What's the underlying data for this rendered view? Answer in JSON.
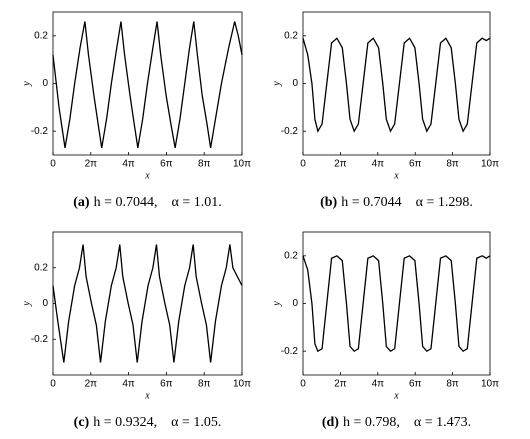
{
  "chart_data": [
    {
      "type": "line",
      "label": "(a)",
      "caption": "h = 0.7044,    α = 1.01.",
      "xlabel": "x",
      "ylabel": "y",
      "color": "#000000",
      "xlim": [
        0,
        31.416
      ],
      "ylim": [
        -0.3,
        0.3
      ],
      "xticks": [
        0,
        {
          "value": 6.283,
          "label": "2π"
        },
        {
          "value": 12.566,
          "label": "4π"
        },
        {
          "value": 18.85,
          "label": "6π"
        },
        {
          "value": 25.133,
          "label": "8π"
        },
        {
          "value": 31.416,
          "label": "10π"
        }
      ],
      "yticks": [
        -0.2,
        0,
        0.2
      ],
      "x": [
        0,
        1.0,
        2.0,
        2.8,
        3.6,
        4.5,
        5.3,
        5.9,
        6.8,
        7.5,
        8.1,
        8.9,
        9.7,
        10.6,
        11.3,
        11.9,
        12.8,
        13.5,
        14.1,
        14.9,
        15.7,
        16.6,
        17.3,
        17.9,
        18.8,
        19.6,
        20.3,
        21.1,
        21.9,
        22.7,
        23.4,
        24.0,
        24.8,
        25.6,
        26.2,
        27.0,
        28.0,
        29.2,
        30.2,
        30.8,
        31.416
      ],
      "values": [
        0.12,
        -0.1,
        -0.27,
        -0.15,
        0.0,
        0.15,
        0.26,
        0.12,
        -0.05,
        -0.17,
        -0.27,
        -0.15,
        0.0,
        0.15,
        0.26,
        0.12,
        -0.05,
        -0.17,
        -0.27,
        -0.15,
        0.0,
        0.15,
        0.26,
        0.12,
        -0.05,
        -0.17,
        -0.27,
        -0.15,
        0.0,
        0.15,
        0.26,
        0.12,
        -0.05,
        -0.17,
        -0.27,
        -0.15,
        0.0,
        0.15,
        0.26,
        0.2,
        0.12
      ]
    },
    {
      "type": "line",
      "label": "(b)",
      "caption": "h = 0.7044    α = 1.298.",
      "xlabel": "x",
      "ylabel": "y",
      "color": "#000000",
      "xlim": [
        0,
        31.416
      ],
      "ylim": [
        -0.3,
        0.3
      ],
      "xticks": [
        0,
        {
          "value": 6.283,
          "label": "2π"
        },
        {
          "value": 12.566,
          "label": "4π"
        },
        {
          "value": 18.85,
          "label": "6π"
        },
        {
          "value": 25.133,
          "label": "8π"
        },
        {
          "value": 31.416,
          "label": "10π"
        }
      ],
      "yticks": [
        -0.2,
        0,
        0.2
      ],
      "x": [
        0,
        0.8,
        1.5,
        2.0,
        2.5,
        3.2,
        4.0,
        4.8,
        5.7,
        6.6,
        7.3,
        7.9,
        8.6,
        9.3,
        10.1,
        10.9,
        11.8,
        12.7,
        13.4,
        14.0,
        14.7,
        15.4,
        16.2,
        17.0,
        17.9,
        18.8,
        19.5,
        20.1,
        20.8,
        21.5,
        22.3,
        23.1,
        24.0,
        24.9,
        25.6,
        26.2,
        26.9,
        27.6,
        28.4,
        29.2,
        30.1,
        30.8,
        31.416
      ],
      "values": [
        0.19,
        0.12,
        0.0,
        -0.15,
        -0.2,
        -0.17,
        0.0,
        0.17,
        0.19,
        0.15,
        0.0,
        -0.15,
        -0.2,
        -0.17,
        0.0,
        0.17,
        0.19,
        0.15,
        0.0,
        -0.15,
        -0.2,
        -0.17,
        0.0,
        0.17,
        0.19,
        0.15,
        0.0,
        -0.15,
        -0.2,
        -0.17,
        0.0,
        0.17,
        0.19,
        0.15,
        0.0,
        -0.15,
        -0.2,
        -0.17,
        0.0,
        0.17,
        0.19,
        0.18,
        0.19
      ]
    },
    {
      "type": "line",
      "label": "(c)",
      "caption": "h = 0.9324,    α = 1.05.",
      "xlabel": "x",
      "ylabel": "y",
      "color": "#000000",
      "xlim": [
        0,
        31.416
      ],
      "ylim": [
        -0.4,
        0.4
      ],
      "xticks": [
        0,
        {
          "value": 6.283,
          "label": "2π"
        },
        {
          "value": 12.566,
          "label": "4π"
        },
        {
          "value": 18.85,
          "label": "6π"
        },
        {
          "value": 25.133,
          "label": "8π"
        },
        {
          "value": 31.416,
          "label": "10π"
        }
      ],
      "yticks": [
        -0.2,
        0,
        0.2
      ],
      "x": [
        0,
        0.8,
        1.8,
        2.6,
        3.6,
        4.4,
        5.0,
        5.5,
        6.4,
        7.2,
        7.9,
        8.7,
        9.7,
        10.5,
        11.1,
        11.6,
        12.5,
        13.3,
        14.0,
        14.8,
        15.8,
        16.6,
        17.2,
        17.7,
        18.6,
        19.4,
        20.1,
        20.9,
        21.9,
        22.7,
        23.3,
        23.8,
        24.7,
        25.5,
        26.2,
        27.0,
        28.0,
        28.8,
        29.4,
        29.9,
        31.416
      ],
      "values": [
        0.1,
        -0.1,
        -0.33,
        -0.1,
        0.1,
        0.2,
        0.33,
        0.15,
        0.0,
        -0.12,
        -0.33,
        -0.1,
        0.1,
        0.2,
        0.33,
        0.15,
        0.0,
        -0.12,
        -0.33,
        -0.1,
        0.1,
        0.2,
        0.33,
        0.15,
        0.0,
        -0.12,
        -0.33,
        -0.1,
        0.1,
        0.2,
        0.33,
        0.15,
        0.0,
        -0.12,
        -0.33,
        -0.1,
        0.1,
        0.2,
        0.33,
        0.2,
        0.1
      ]
    },
    {
      "type": "line",
      "label": "(d)",
      "caption": "h = 0.798,    α = 1.473.",
      "xlabel": "x",
      "ylabel": "y",
      "color": "#000000",
      "xlim": [
        0,
        31.416
      ],
      "ylim": [
        -0.3,
        0.3
      ],
      "xticks": [
        0,
        {
          "value": 6.283,
          "label": "2π"
        },
        {
          "value": 12.566,
          "label": "4π"
        },
        {
          "value": 18.85,
          "label": "6π"
        },
        {
          "value": 25.133,
          "label": "8π"
        },
        {
          "value": 31.416,
          "label": "10π"
        }
      ],
      "yticks": [
        -0.2,
        0,
        0.2
      ],
      "x": [
        0,
        0.8,
        1.5,
        2.0,
        2.5,
        3.2,
        4.0,
        4.8,
        5.7,
        6.6,
        7.3,
        7.9,
        8.6,
        9.3,
        10.1,
        10.9,
        11.8,
        12.7,
        13.4,
        14.0,
        14.7,
        15.4,
        16.2,
        17.0,
        17.9,
        18.8,
        19.5,
        20.1,
        20.8,
        21.5,
        22.3,
        23.1,
        24.0,
        24.9,
        25.6,
        26.2,
        26.9,
        27.6,
        28.4,
        29.2,
        30.1,
        30.8,
        31.416
      ],
      "values": [
        0.2,
        0.14,
        0.0,
        -0.17,
        -0.2,
        -0.19,
        0.0,
        0.19,
        0.2,
        0.18,
        0.0,
        -0.18,
        -0.2,
        -0.19,
        0.0,
        0.19,
        0.2,
        0.18,
        0.0,
        -0.18,
        -0.2,
        -0.19,
        0.0,
        0.19,
        0.2,
        0.18,
        0.0,
        -0.18,
        -0.2,
        -0.19,
        0.0,
        0.19,
        0.2,
        0.18,
        0.0,
        -0.18,
        -0.2,
        -0.19,
        0.0,
        0.19,
        0.2,
        0.19,
        0.2
      ]
    }
  ]
}
